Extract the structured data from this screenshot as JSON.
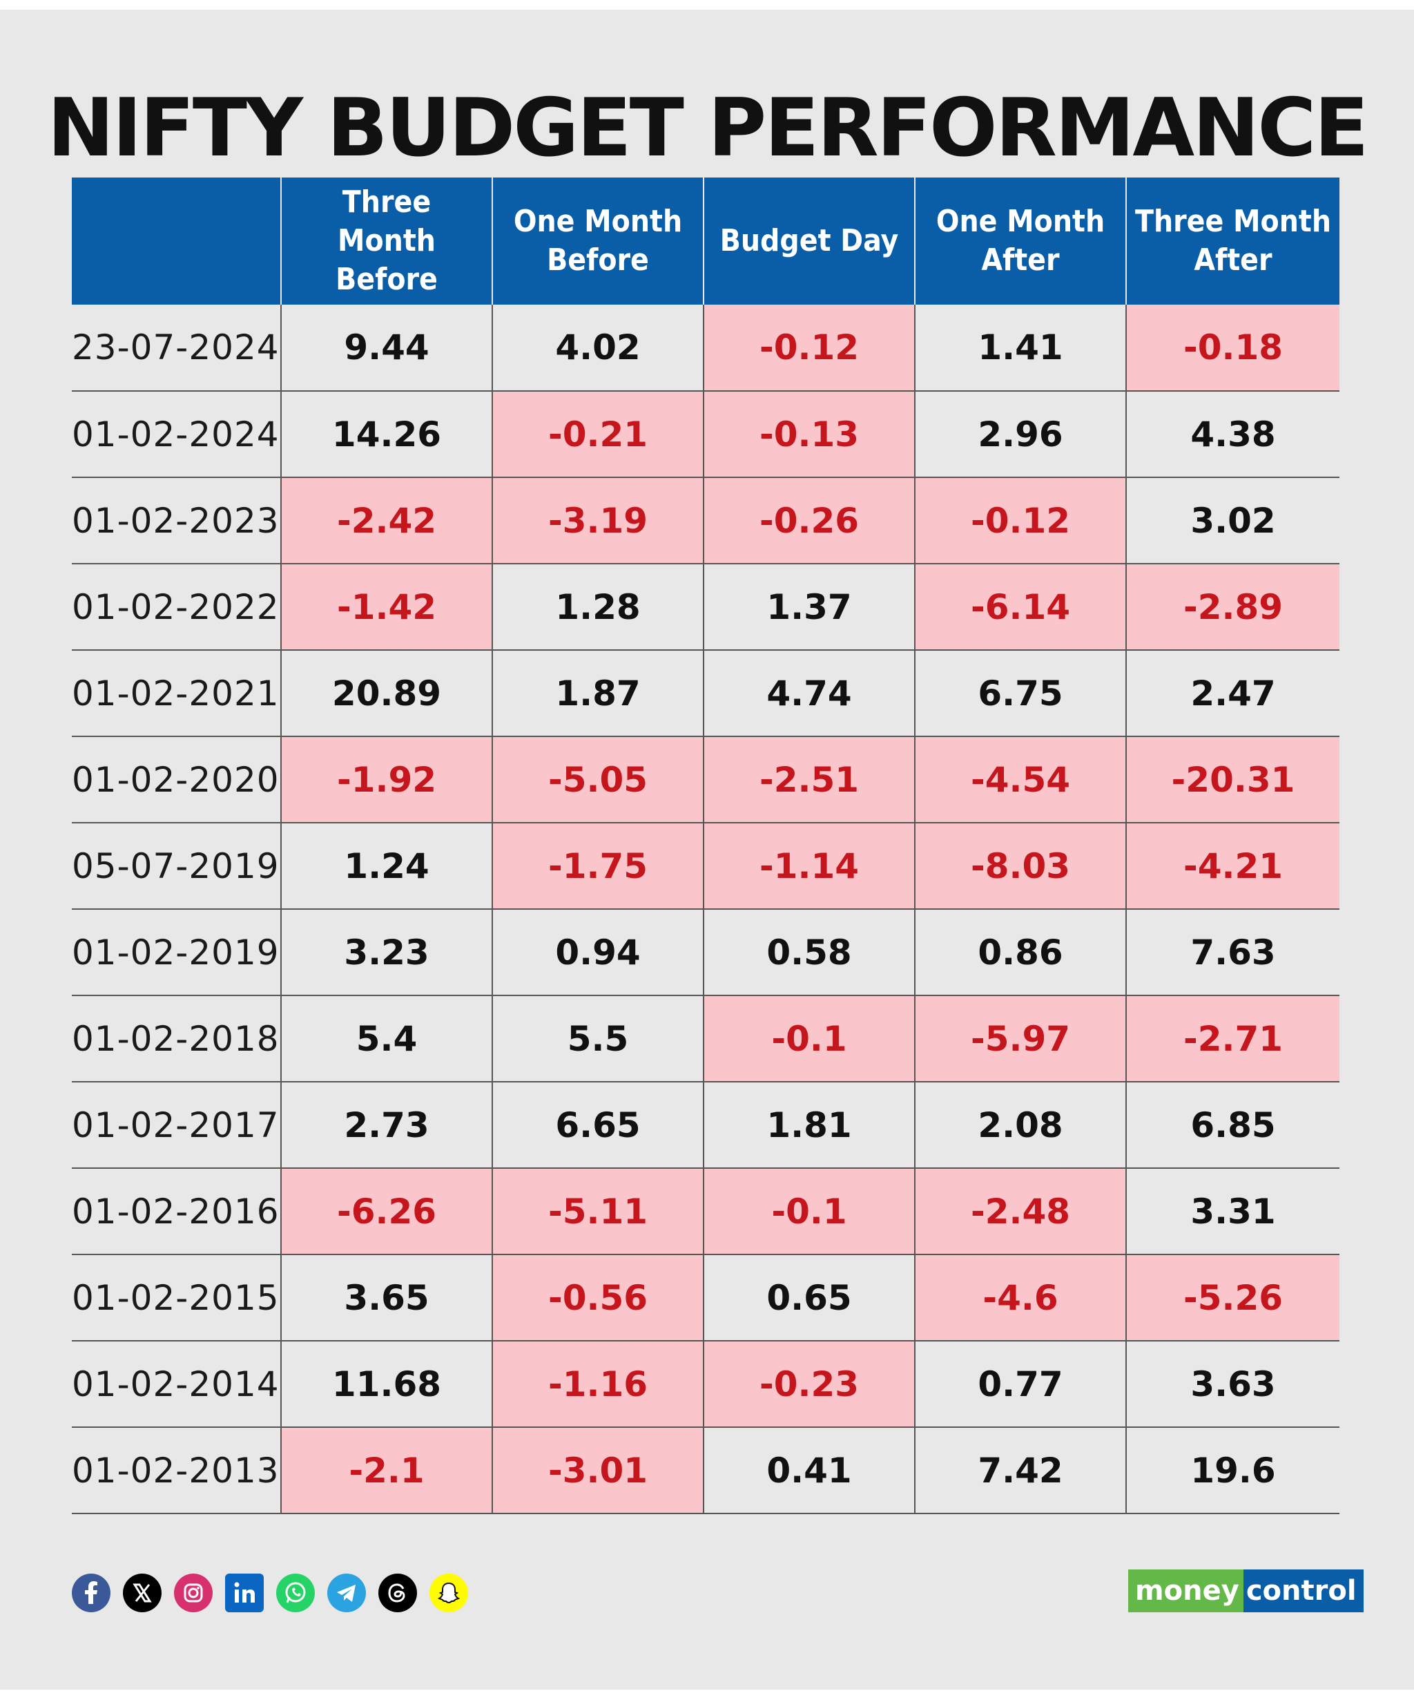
{
  "title": "NIFTY BUDGET PERFORMANCE",
  "colors": {
    "header_bg": "#0a5ea7",
    "negative_bg": "#fbc6cb",
    "negative_text": "#c4161c",
    "card_bg": "#e8e8e9"
  },
  "chart_data": {
    "type": "table",
    "title": "NIFTY BUDGET PERFORMANCE",
    "columns": [
      "",
      "Three Month Before",
      "One Month Before",
      "Budget Day",
      "One Month After",
      "Three Month After"
    ],
    "column_lines": [
      [
        "",
        ""
      ],
      [
        "Three Month",
        "Before"
      ],
      [
        "One Month",
        "Before"
      ],
      [
        "Budget Day",
        ""
      ],
      [
        "One Month",
        "After"
      ],
      [
        "Three Month",
        "After"
      ]
    ],
    "rows": [
      {
        "date": "23-07-2024",
        "values": [
          "9.44",
          "4.02",
          "-0.12",
          "1.41",
          "-0.18"
        ]
      },
      {
        "date": "01-02-2024",
        "values": [
          "14.26",
          "-0.21",
          "-0.13",
          "2.96",
          "4.38"
        ]
      },
      {
        "date": "01-02-2023",
        "values": [
          "-2.42",
          "-3.19",
          "-0.26",
          "-0.12",
          "3.02"
        ]
      },
      {
        "date": "01-02-2022",
        "values": [
          "-1.42",
          "1.28",
          "1.37",
          "-6.14",
          "-2.89"
        ]
      },
      {
        "date": "01-02-2021",
        "values": [
          "20.89",
          "1.87",
          "4.74",
          "6.75",
          "2.47"
        ]
      },
      {
        "date": "01-02-2020",
        "values": [
          "-1.92",
          "-5.05",
          "-2.51",
          "-4.54",
          "-20.31"
        ]
      },
      {
        "date": "05-07-2019",
        "values": [
          "1.24",
          "-1.75",
          "-1.14",
          "-8.03",
          "-4.21"
        ]
      },
      {
        "date": "01-02-2019",
        "values": [
          "3.23",
          "0.94",
          "0.58",
          "0.86",
          "7.63"
        ]
      },
      {
        "date": "01-02-2018",
        "values": [
          "5.4",
          "5.5",
          "-0.1",
          "-5.97",
          "-2.71"
        ]
      },
      {
        "date": "01-02-2017",
        "values": [
          "2.73",
          "6.65",
          "1.81",
          "2.08",
          "6.85"
        ]
      },
      {
        "date": "01-02-2016",
        "values": [
          "-6.26",
          "-5.11",
          "-0.1",
          "-2.48",
          "3.31"
        ]
      },
      {
        "date": "01-02-2015",
        "values": [
          "3.65",
          "-0.56",
          "0.65",
          "-4.6",
          "-5.26"
        ]
      },
      {
        "date": "01-02-2014",
        "values": [
          "11.68",
          "-1.16",
          "-0.23",
          "0.77",
          "3.63"
        ]
      },
      {
        "date": "01-02-2013",
        "values": [
          "-2.1",
          "-3.01",
          "0.41",
          "7.42",
          "19.6"
        ]
      }
    ]
  },
  "footer": {
    "social_icons": [
      "facebook-icon",
      "x-icon",
      "instagram-icon",
      "linkedin-icon",
      "whatsapp-icon",
      "telegram-icon",
      "threads-icon",
      "snapchat-icon"
    ],
    "brand_part1": "money",
    "brand_part2": "control"
  }
}
